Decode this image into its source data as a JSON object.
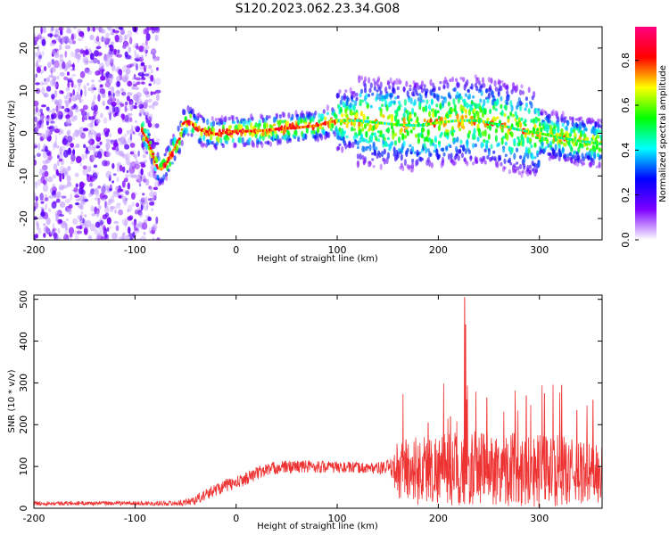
{
  "figure": {
    "title": "S120.2023.062.23.34.G08"
  },
  "chart_data": [
    {
      "type": "heatmap",
      "xlabel": "Height of straight line (km)",
      "ylabel": "Frequency (Hz)",
      "xlim": [
        -200,
        362
      ],
      "ylim": [
        -25,
        25
      ],
      "x_ticks": [
        "-200",
        "-100",
        "0",
        "100",
        "200",
        "300"
      ],
      "y_ticks": [
        "-20",
        "-10",
        "0",
        "10",
        "20"
      ],
      "colorbar": {
        "label": "Normalized spectral amplitude",
        "range": [
          0,
          0.95
        ],
        "ticks": [
          "0.0",
          "0.2",
          "0.4",
          "0.6",
          "0.8"
        ],
        "colormap": [
          "#ffffff",
          "#7d00ff",
          "#0000ff",
          "#00ffff",
          "#00ff00",
          "#ffff00",
          "#ff0000",
          "#ff0080"
        ]
      },
      "ridge": {
        "x": [
          -93,
          -88,
          -82,
          -78,
          -74,
          -70,
          -66,
          -62,
          -58,
          -55,
          -52,
          -48,
          -44,
          -40,
          -30,
          -20,
          -10,
          0,
          20,
          40,
          60,
          80,
          90,
          100,
          120,
          140,
          160,
          180,
          200,
          220,
          240,
          260,
          280,
          300,
          320,
          340,
          362
        ],
        "y": [
          0.5,
          -1.5,
          -5,
          -8,
          -8.5,
          -7.5,
          -6,
          -4,
          -2,
          -1,
          2.5,
          2.8,
          2.5,
          1,
          0.5,
          -0.2,
          0.2,
          0.5,
          0.5,
          1,
          1.3,
          1.8,
          2.5,
          3,
          3,
          2.5,
          2,
          1.8,
          2.5,
          3,
          3,
          2,
          0.8,
          0,
          -1,
          -1.8,
          -2.5
        ]
      },
      "noise_region_x": [
        -200,
        -85
      ]
    },
    {
      "type": "line",
      "xlabel": "Height of straight line (km)",
      "ylabel": "SNR (10 * v/v)",
      "xlim": [
        -200,
        362
      ],
      "ylim": [
        0,
        510
      ],
      "x_ticks": [
        "-200",
        "-100",
        "0",
        "100",
        "200",
        "300"
      ],
      "y_ticks": [
        "0",
        "100",
        "200",
        "300",
        "400",
        "500"
      ],
      "color": "#ee3333",
      "envelope": {
        "x": [
          -200,
          -100,
          -60,
          -50,
          -40,
          -30,
          -20,
          -10,
          0,
          10,
          20,
          30,
          40,
          60,
          80,
          100,
          120,
          140,
          155,
          160,
          170,
          180,
          200,
          220,
          225,
          230,
          250,
          280,
          300,
          320,
          340,
          362
        ],
        "baseline": [
          12,
          12,
          12,
          14,
          20,
          32,
          45,
          55,
          60,
          72,
          83,
          92,
          97,
          100,
          100,
          98,
          97,
          96,
          95,
          92,
          90,
          92,
          95,
          95,
          95,
          95,
          95,
          95,
          90,
          90,
          85,
          80
        ],
        "spread": [
          5,
          5,
          6,
          8,
          12,
          14,
          15,
          16,
          16,
          16,
          16,
          16,
          16,
          16,
          15,
          14,
          13,
          14,
          25,
          75,
          85,
          85,
          85,
          90,
          90,
          90,
          90,
          90,
          90,
          85,
          75,
          75
        ]
      },
      "peaks": [
        {
          "x": 226,
          "y": 505
        },
        {
          "x": 227,
          "y": 440
        },
        {
          "x": 322,
          "y": 295
        },
        {
          "x": 305,
          "y": 275
        },
        {
          "x": 287,
          "y": 270
        },
        {
          "x": 248,
          "y": 265
        },
        {
          "x": 228,
          "y": 260
        },
        {
          "x": 353,
          "y": 260
        },
        {
          "x": 337,
          "y": 235
        },
        {
          "x": 212,
          "y": 220
        },
        {
          "x": 190,
          "y": 205
        },
        {
          "x": 168,
          "y": 165
        }
      ]
    }
  ]
}
